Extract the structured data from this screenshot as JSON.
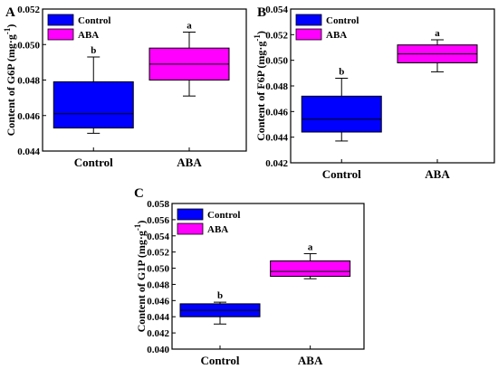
{
  "chart_data": [
    {
      "type": "box",
      "panel_label": "A",
      "ylabel": "Content of G6P (mg·g",
      "ylabel_sup": "-1",
      "ylabel_close": ")",
      "ylim": [
        0.044,
        0.052
      ],
      "yticks": [
        "0.044",
        "0.046",
        "0.048",
        "0.050",
        "0.052"
      ],
      "categories": [
        "Control",
        "ABA"
      ],
      "legend": [
        "Control",
        "ABA"
      ],
      "legend_position": "top-left",
      "series": [
        {
          "name": "Control",
          "color": "#0000ff",
          "whisker_low": 0.045,
          "q1": 0.0453,
          "median": 0.0461,
          "q3": 0.0479,
          "whisker_high": 0.0493,
          "significance": "b"
        },
        {
          "name": "ABA",
          "color": "#ff00ff",
          "whisker_low": 0.0471,
          "q1": 0.048,
          "median": 0.0489,
          "q3": 0.0498,
          "whisker_high": 0.0507,
          "significance": "a"
        }
      ]
    },
    {
      "type": "box",
      "panel_label": "B",
      "ylabel": "Content of F6P (mg·g",
      "ylabel_sup": "-1",
      "ylabel_close": ")",
      "ylim": [
        0.042,
        0.054
      ],
      "yticks": [
        "0.042",
        "0.044",
        "0.046",
        "0.048",
        "0.050",
        "0.052",
        "0.054"
      ],
      "categories": [
        "Control",
        "ABA"
      ],
      "legend": [
        "Control",
        "ABA"
      ],
      "legend_position": "top-left",
      "series": [
        {
          "name": "Control",
          "color": "#0000ff",
          "whisker_low": 0.0437,
          "q1": 0.0444,
          "median": 0.0454,
          "q3": 0.0472,
          "whisker_high": 0.0486,
          "significance": "b"
        },
        {
          "name": "ABA",
          "color": "#ff00ff",
          "whisker_low": 0.0491,
          "q1": 0.0498,
          "median": 0.0505,
          "q3": 0.0512,
          "whisker_high": 0.0516,
          "significance": "a"
        }
      ]
    },
    {
      "type": "box",
      "panel_label": "C",
      "ylabel": "Content of G1P (mg·g",
      "ylabel_sup": "-1",
      "ylabel_close": ")",
      "ylim": [
        0.04,
        0.058
      ],
      "yticks": [
        "0.040",
        "0.042",
        "0.044",
        "0.046",
        "0.048",
        "0.050",
        "0.052",
        "0.054",
        "0.056",
        "0.058"
      ],
      "categories": [
        "Control",
        "ABA"
      ],
      "legend": [
        "Control",
        "ABA"
      ],
      "legend_position": "top-left",
      "series": [
        {
          "name": "Control",
          "color": "#0000ff",
          "whisker_low": 0.0431,
          "q1": 0.044,
          "median": 0.0448,
          "q3": 0.0456,
          "whisker_high": 0.0458,
          "significance": "b"
        },
        {
          "name": "ABA",
          "color": "#ff00ff",
          "whisker_low": 0.0487,
          "q1": 0.049,
          "median": 0.0496,
          "q3": 0.0509,
          "whisker_high": 0.0518,
          "significance": "a"
        }
      ]
    }
  ]
}
